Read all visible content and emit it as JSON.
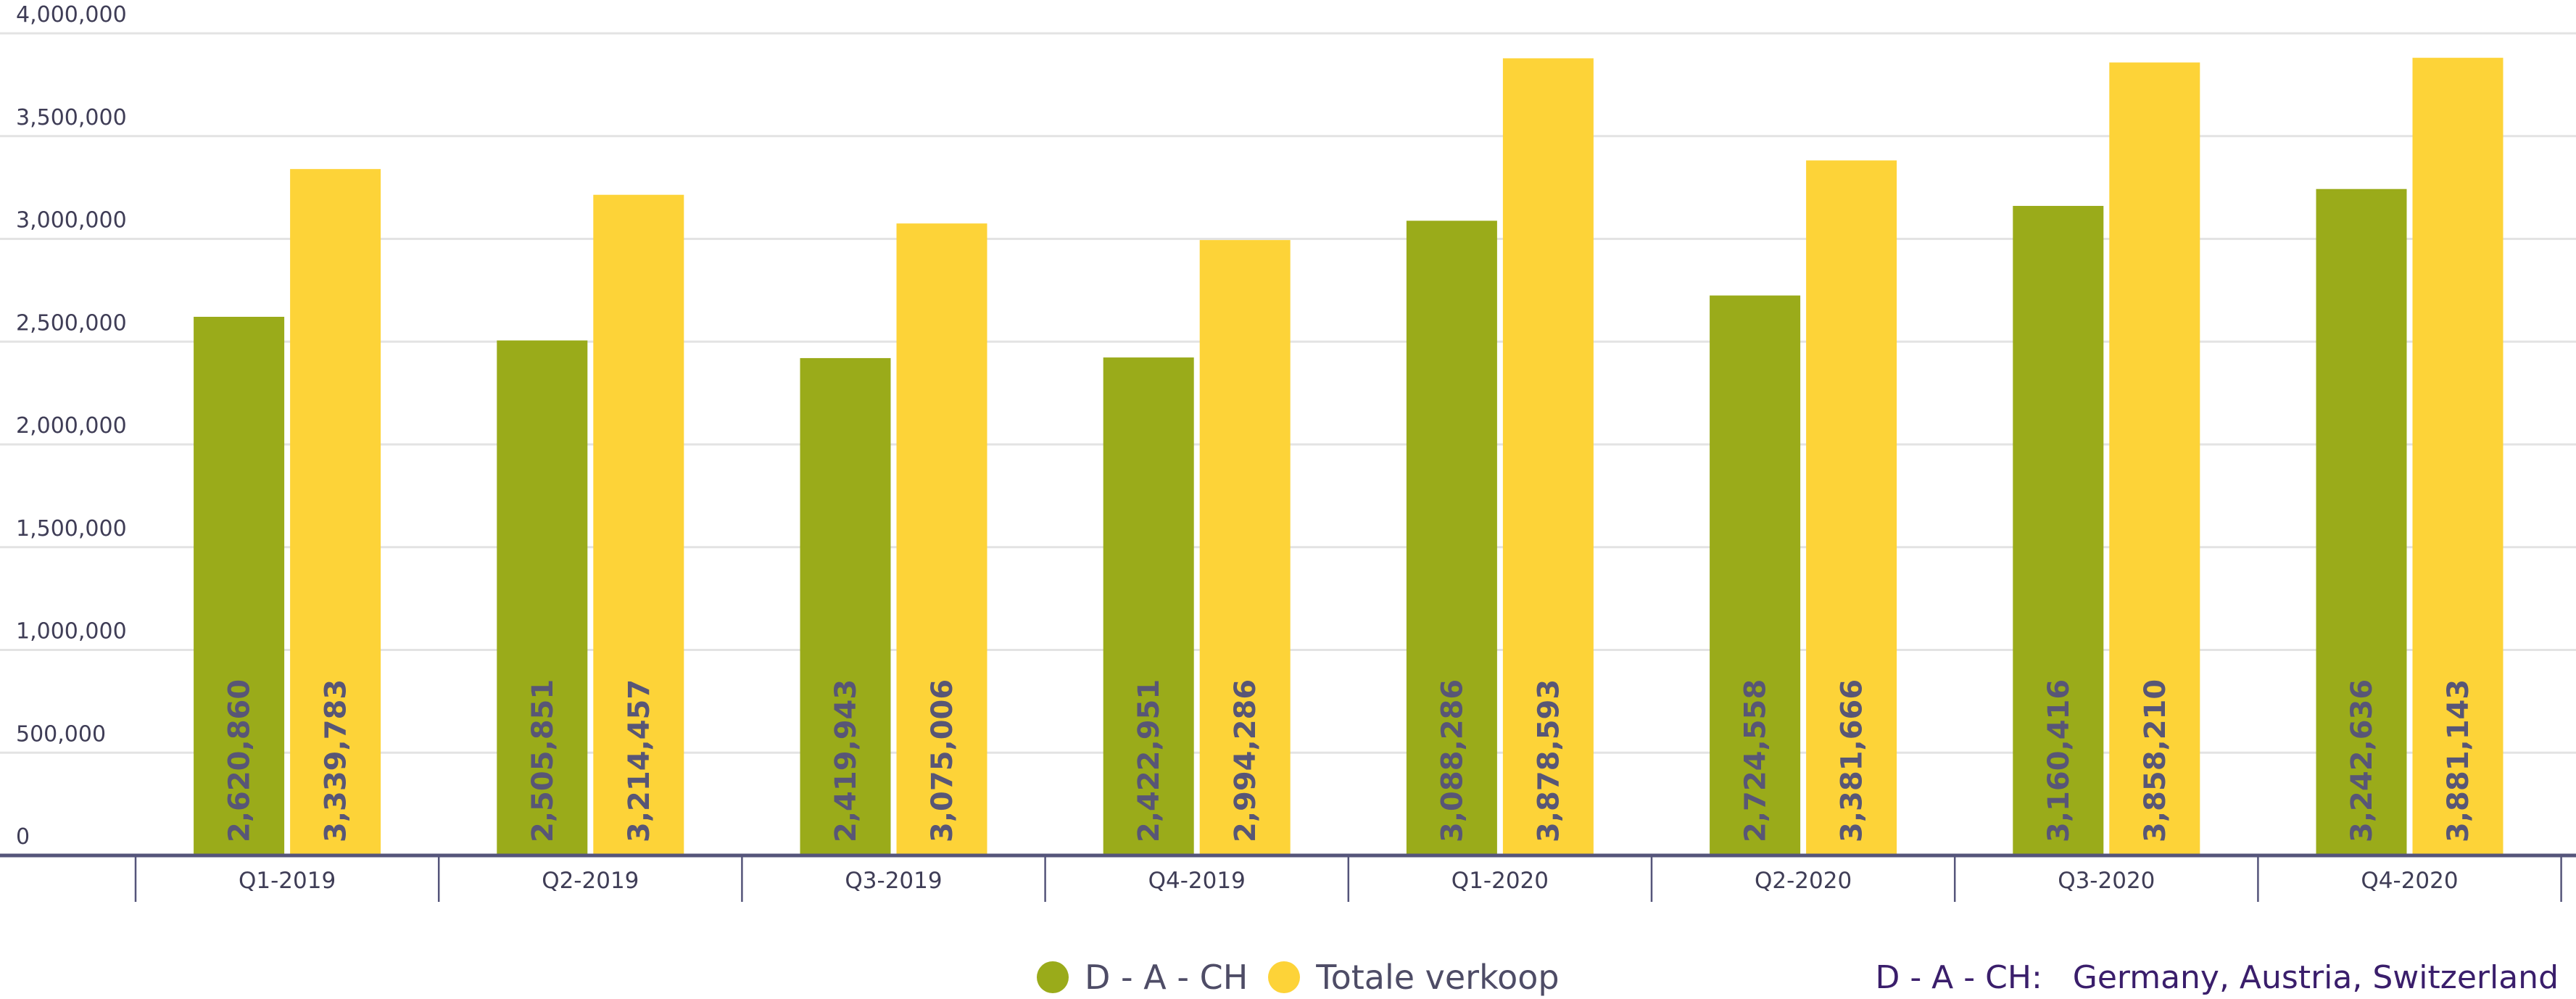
{
  "chart_data": {
    "type": "bar",
    "categories": [
      "Q1-2019",
      "Q2-2019",
      "Q3-2019",
      "Q4-2019",
      "Q1-2020",
      "Q2-2020",
      "Q3-2020",
      "Q4-2020"
    ],
    "series": [
      {
        "name": "D - A - CH",
        "color": "#9aab1a",
        "values": [
          2620860,
          2505851,
          2419943,
          2422951,
          3088286,
          2724558,
          3160416,
          3242636
        ],
        "labels": [
          "2,620,860",
          "2,505,851",
          "2,419,943",
          "2,422,951",
          "3,088,286",
          "2,724,558",
          "3,160,416",
          "3,242,636"
        ]
      },
      {
        "name": "Totale verkoop",
        "color": "#fdd338",
        "values": [
          3339783,
          3214457,
          3075006,
          2994286,
          3878593,
          3381666,
          3858210,
          3881143
        ],
        "labels": [
          "3,339,783",
          "3,214,457",
          "3,075,006",
          "2,994,286",
          "3,878,593",
          "3,381,666",
          "3,858,210",
          "3,881,143"
        ]
      }
    ],
    "ylim": [
      0,
      4000000
    ],
    "yticks": [
      0,
      500000,
      1000000,
      1500000,
      2000000,
      2500000,
      3000000,
      3500000,
      4000000
    ],
    "ytick_labels": [
      "0",
      "500,000",
      "1,000,000",
      "1,500,000",
      "2,000,000",
      "2,500,000",
      "3,000,000",
      "3,500,000",
      "4,000,000"
    ],
    "grid": true,
    "legend_position": "bottom-center",
    "xlabel": "",
    "ylabel": "",
    "title": ""
  },
  "footnote": "D - A - CH:   Germany, Austria, Switzerland",
  "colors": {
    "grid": "#e3e3e3",
    "axis": "#55557a",
    "text": "#3f3d56",
    "footnote": "#3a1e6b"
  }
}
